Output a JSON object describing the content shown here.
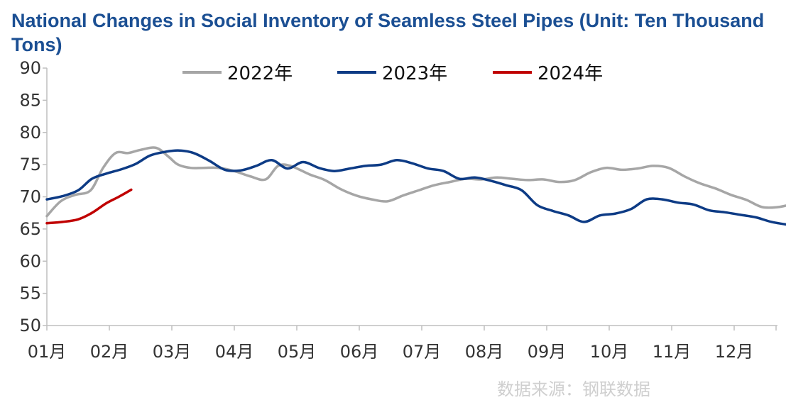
{
  "chart_data": {
    "type": "line",
    "title": "National Changes in Social Inventory of Seamless Steel Pipes (Unit: Ten Thousand Tons)",
    "xlabel": "",
    "ylabel": "",
    "ylim": [
      50,
      90
    ],
    "yticks": [
      "90",
      "85",
      "80",
      "75",
      "70",
      "65",
      "60",
      "55",
      "50"
    ],
    "ytick_values": [
      90,
      85,
      80,
      75,
      70,
      65,
      60,
      55,
      50
    ],
    "xlim": [
      0,
      11.9
    ],
    "month_labels": [
      "01月",
      "02月",
      "03月",
      "04月",
      "05月",
      "06月",
      "07月",
      "08月",
      "09月",
      "10月",
      "11月",
      "12月"
    ],
    "month_positions": [
      0,
      1,
      2,
      3,
      4,
      5,
      6,
      7,
      8,
      9,
      10,
      11
    ],
    "legend_position": "top-center",
    "grid": false,
    "series": [
      {
        "name": "2022年",
        "color": "#a6a6a6",
        "x": [
          0,
          0.22,
          0.45,
          0.7,
          0.9,
          1.1,
          1.3,
          1.5,
          1.75,
          1.95,
          2.1,
          2.3,
          2.5,
          2.75,
          3.0,
          3.25,
          3.5,
          3.7,
          3.9,
          4.2,
          4.45,
          4.7,
          4.95,
          5.2,
          5.45,
          5.7,
          5.95,
          6.2,
          6.45,
          6.7,
          6.95,
          7.2,
          7.45,
          7.7,
          7.95,
          8.2,
          8.45,
          8.7,
          8.95,
          9.2,
          9.45,
          9.7,
          9.95,
          10.2,
          10.45,
          10.7,
          10.95,
          11.2,
          11.45,
          11.7,
          11.9
        ],
        "values": [
          67,
          69.3,
          70.3,
          71,
          74.5,
          76.8,
          76.8,
          77.3,
          77.6,
          76.2,
          75,
          74.5,
          74.5,
          74.5,
          74.0,
          73.2,
          72.7,
          74.8,
          74.8,
          73.5,
          72.6,
          71.2,
          70.2,
          69.6,
          69.3,
          70.2,
          71.0,
          71.8,
          72.3,
          72.8,
          72.7,
          73.0,
          72.8,
          72.6,
          72.7,
          72.3,
          72.6,
          73.8,
          74.5,
          74.2,
          74.4,
          74.8,
          74.5,
          73.2,
          72.1,
          71.3,
          70.3,
          69.5,
          68.4,
          68.4,
          68.8
        ]
      },
      {
        "name": "2023年",
        "color": "#0d3b85",
        "x": [
          0,
          0.25,
          0.5,
          0.72,
          0.95,
          1.2,
          1.42,
          1.65,
          1.9,
          2.12,
          2.35,
          2.6,
          2.85,
          3.1,
          3.35,
          3.6,
          3.85,
          4.1,
          4.35,
          4.6,
          4.85,
          5.1,
          5.35,
          5.6,
          5.85,
          6.1,
          6.35,
          6.6,
          6.85,
          7.1,
          7.35,
          7.6,
          7.85,
          8.1,
          8.35,
          8.6,
          8.85,
          9.1,
          9.35,
          9.6,
          9.85,
          10.1,
          10.35,
          10.6,
          10.85,
          11.1,
          11.35,
          11.6,
          11.9
        ],
        "values": [
          69.6,
          70.1,
          71,
          72.8,
          73.6,
          74.3,
          75.1,
          76.4,
          77.0,
          77.2,
          76.8,
          75.6,
          74.2,
          74.1,
          74.8,
          75.7,
          74.4,
          75.4,
          74.5,
          74.0,
          74.4,
          74.8,
          75.0,
          75.7,
          75.2,
          74.4,
          74.0,
          72.8,
          73.0,
          72.5,
          71.8,
          71.0,
          68.7,
          67.8,
          67.1,
          66.1,
          67.1,
          67.4,
          68.1,
          69.6,
          69.6,
          69.1,
          68.8,
          67.9,
          67.6,
          67.2,
          66.8,
          66.1,
          65.6
        ]
      },
      {
        "name": "2024年",
        "color": "#c00000",
        "x": [
          0,
          0.25,
          0.5,
          0.72,
          0.95,
          1.15,
          1.35
        ],
        "values": [
          65.9,
          66.1,
          66.5,
          67.5,
          69.0,
          70.0,
          71.1
        ]
      }
    ]
  },
  "source": "数据来源：钢联数据"
}
